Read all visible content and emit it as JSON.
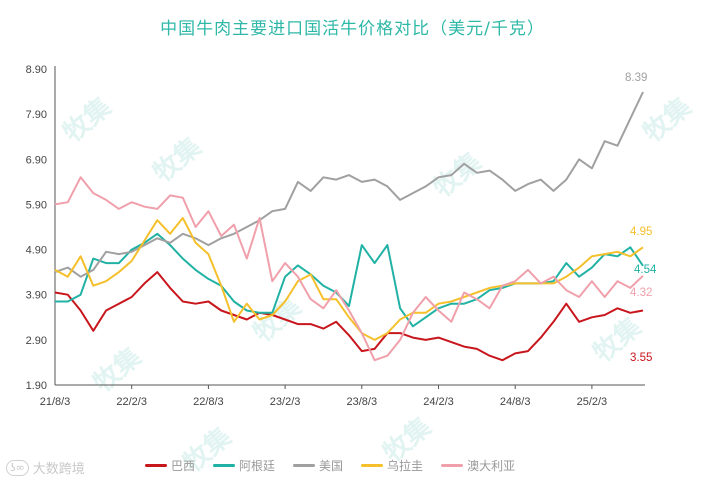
{
  "title": "中国牛肉主要进口国活牛价格对比（美元/千克）",
  "brand": {
    "logo": "ʖ∞",
    "text": "大数跨境"
  },
  "watermark": "牧集",
  "chart_data": {
    "type": "line",
    "title": "中国牛肉主要进口国活牛价格对比（美元/千克）",
    "xlabel": "",
    "ylabel": "",
    "ylim": [
      1.9,
      8.9
    ],
    "yticks": [
      "1.90",
      "2.90",
      "3.90",
      "4.90",
      "5.90",
      "6.90",
      "7.90",
      "8.90"
    ],
    "xticks": [
      "21/8/3",
      "22/2/3",
      "22/8/3",
      "23/2/3",
      "23/8/3",
      "24/2/3",
      "24/8/3",
      "25/2/3"
    ],
    "grid": false,
    "legend_position": "bottom",
    "x": [
      "21/8",
      "21/9",
      "21/10",
      "21/11",
      "21/12",
      "22/1",
      "22/2",
      "22/3",
      "22/4",
      "22/5",
      "22/6",
      "22/7",
      "22/8",
      "22/9",
      "22/10",
      "22/11",
      "22/12",
      "23/1",
      "23/2",
      "23/3",
      "23/4",
      "23/5",
      "23/6",
      "23/7",
      "23/8",
      "23/9",
      "23/10",
      "23/11",
      "23/12",
      "24/1",
      "24/2",
      "24/3",
      "24/4",
      "24/5",
      "24/6",
      "24/7",
      "24/8",
      "24/9",
      "24/10",
      "24/11",
      "24/12",
      "25/1",
      "25/2",
      "25/3",
      "25/4",
      "25/5",
      "25/6"
    ],
    "series": [
      {
        "name": "巴西",
        "color": "#c8161d",
        "end_label": "3.55",
        "values": [
          3.95,
          3.9,
          3.55,
          3.1,
          3.55,
          3.7,
          3.85,
          4.15,
          4.4,
          4.05,
          3.75,
          3.7,
          3.75,
          3.55,
          3.45,
          3.35,
          3.5,
          3.45,
          3.35,
          3.25,
          3.25,
          3.15,
          3.3,
          3.0,
          2.65,
          2.7,
          3.05,
          3.05,
          2.95,
          2.9,
          2.95,
          2.85,
          2.75,
          2.7,
          2.55,
          2.45,
          2.6,
          2.65,
          2.95,
          3.3,
          3.7,
          3.3,
          3.4,
          3.45,
          3.6,
          3.5,
          3.55
        ]
      },
      {
        "name": "阿根廷",
        "color": "#20b2a4",
        "end_label": "4.54",
        "values": [
          3.75,
          3.75,
          3.9,
          4.7,
          4.6,
          4.6,
          4.9,
          5.05,
          5.25,
          5.0,
          4.7,
          4.45,
          4.25,
          4.1,
          3.75,
          3.55,
          3.5,
          3.5,
          4.3,
          4.55,
          4.35,
          4.1,
          3.95,
          3.65,
          5.0,
          4.6,
          5.0,
          3.6,
          3.2,
          3.4,
          3.6,
          3.7,
          3.7,
          3.8,
          4.0,
          4.05,
          4.15,
          4.15,
          4.15,
          4.2,
          4.6,
          4.3,
          4.5,
          4.8,
          4.75,
          4.95,
          4.54
        ]
      },
      {
        "name": "美国",
        "color": "#a0a0a0",
        "end_label": "8.39",
        "values": [
          4.4,
          4.5,
          4.3,
          4.45,
          4.85,
          4.8,
          4.85,
          5.0,
          5.15,
          5.05,
          5.25,
          5.15,
          5.0,
          5.15,
          5.25,
          5.4,
          5.55,
          5.75,
          5.8,
          6.4,
          6.2,
          6.5,
          6.45,
          6.55,
          6.4,
          6.45,
          6.3,
          6.0,
          6.15,
          6.3,
          6.5,
          6.55,
          6.8,
          6.6,
          6.65,
          6.45,
          6.2,
          6.35,
          6.45,
          6.2,
          6.45,
          6.9,
          6.7,
          7.3,
          7.2,
          7.8,
          8.39
        ]
      },
      {
        "name": "乌拉圭",
        "color": "#f5c02c",
        "end_label": "4.95",
        "values": [
          4.45,
          4.3,
          4.75,
          4.1,
          4.2,
          4.4,
          4.65,
          5.1,
          5.55,
          5.25,
          5.6,
          5.05,
          4.8,
          4.1,
          3.3,
          3.7,
          3.35,
          3.45,
          3.75,
          4.2,
          4.35,
          3.8,
          3.8,
          3.4,
          3.05,
          2.9,
          3.05,
          3.35,
          3.5,
          3.5,
          3.7,
          3.75,
          3.85,
          3.95,
          4.05,
          4.1,
          4.15,
          4.15,
          4.15,
          4.15,
          4.3,
          4.5,
          4.75,
          4.8,
          4.85,
          4.75,
          4.95
        ]
      },
      {
        "name": "澳大利亚",
        "color": "#f0a0ab",
        "end_label": "4.32",
        "values": [
          5.9,
          5.95,
          6.5,
          6.15,
          6.0,
          5.8,
          5.95,
          5.85,
          5.8,
          6.1,
          6.05,
          5.4,
          5.75,
          5.2,
          5.45,
          4.7,
          5.6,
          4.2,
          4.6,
          4.3,
          3.8,
          3.6,
          4.0,
          3.55,
          3.05,
          2.45,
          2.55,
          2.9,
          3.5,
          3.85,
          3.55,
          3.3,
          3.95,
          3.8,
          3.6,
          4.1,
          4.2,
          4.45,
          4.15,
          4.3,
          4.0,
          3.85,
          4.2,
          3.85,
          4.2,
          4.05,
          4.32
        ]
      }
    ]
  }
}
